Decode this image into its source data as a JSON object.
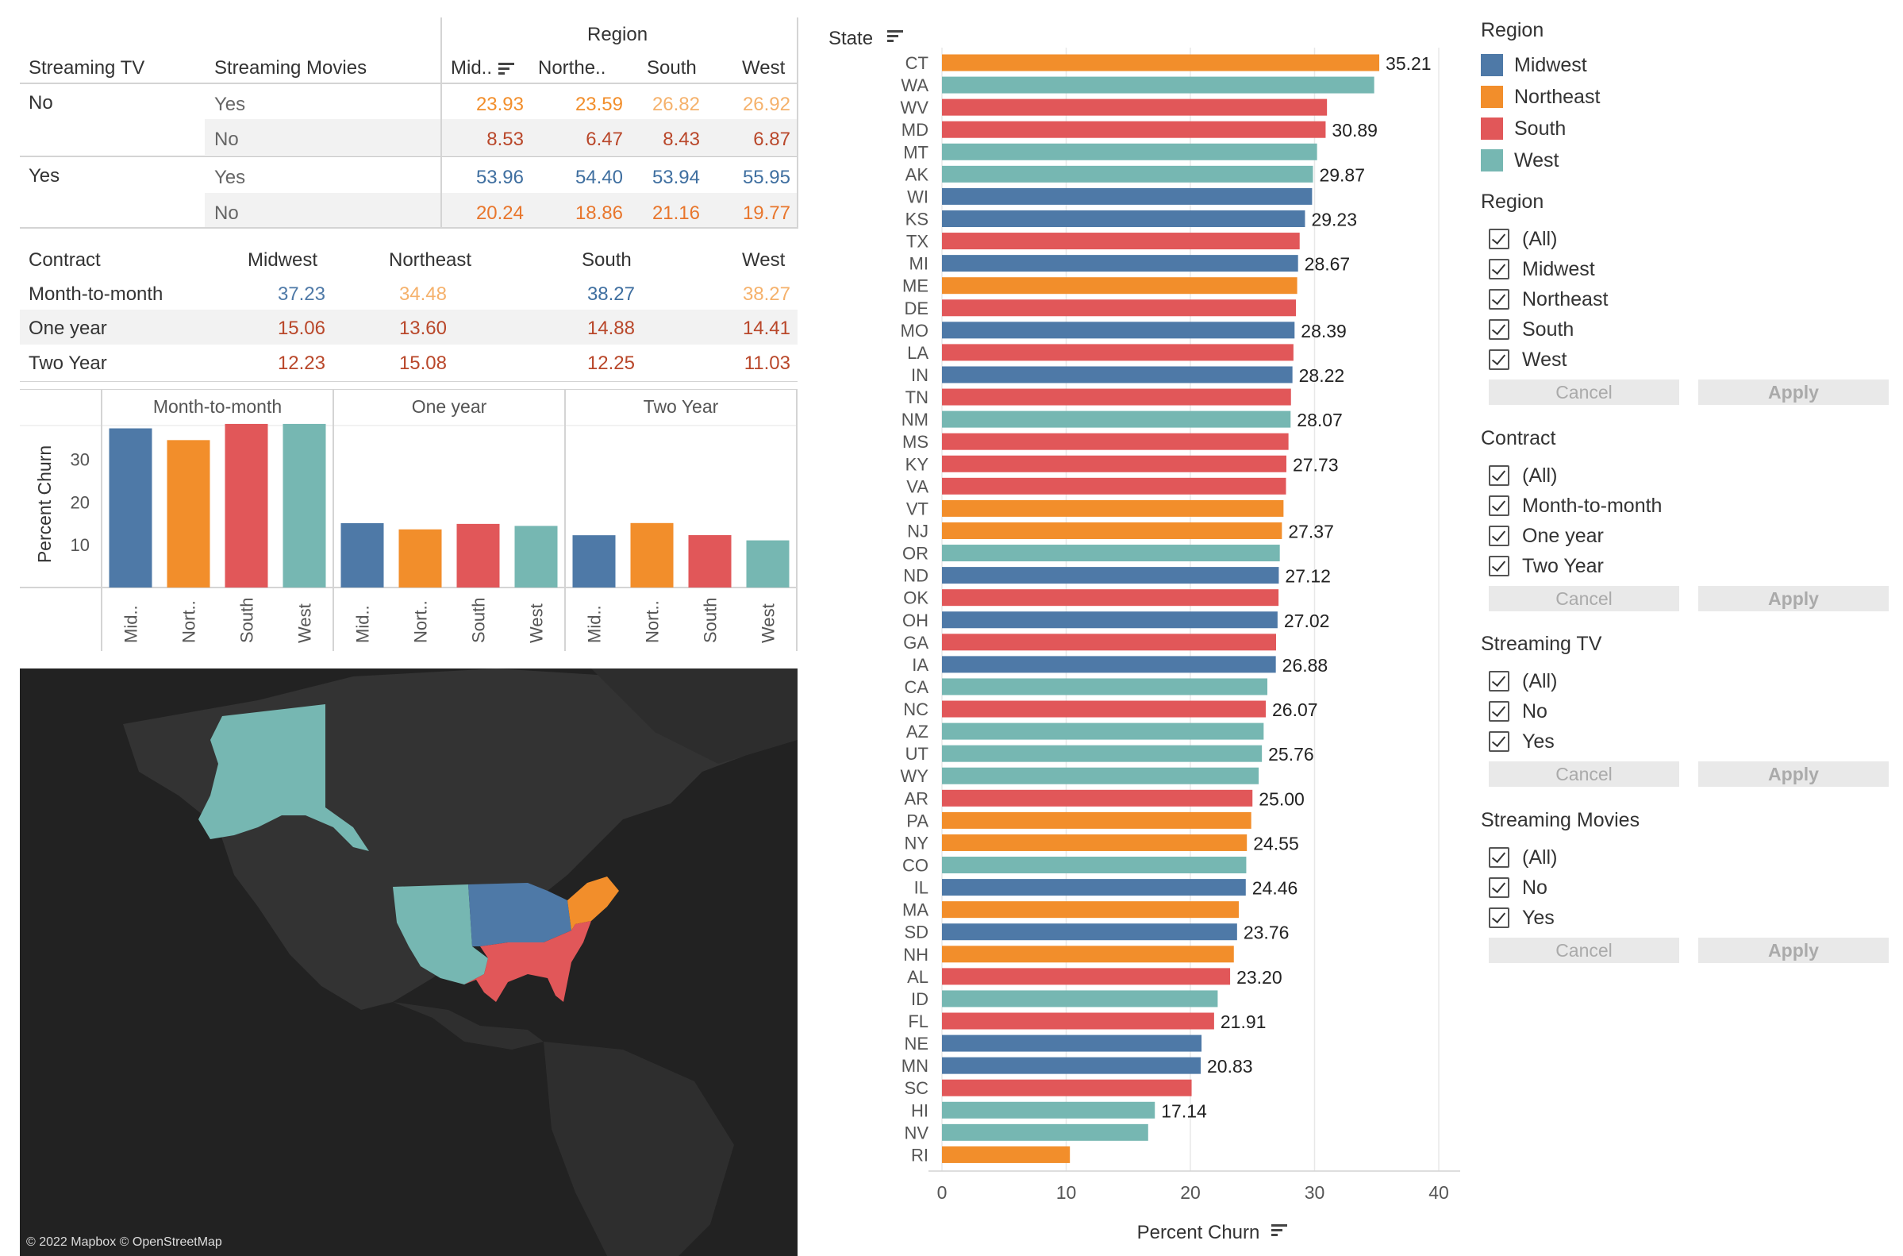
{
  "colors": {
    "Midwest": "#4e79a7",
    "Northeast": "#f28e2b",
    "South": "#e15759",
    "West": "#76b7b2"
  },
  "table1": {
    "region_header": "Region",
    "col_streaming_tv": "Streaming TV",
    "col_streaming_movies": "Streaming Movies",
    "regions": [
      "Mid..",
      "Northe..",
      "South",
      "West"
    ],
    "groups": [
      {
        "tv": "No",
        "rows": [
          {
            "movies": "Yes",
            "values": [
              "23.93",
              "23.59",
              "26.82",
              "26.92"
            ],
            "colors": [
              "#f28e2b",
              "#f28e2b",
              "#f5b16b",
              "#f5b16b"
            ]
          },
          {
            "movies": "No",
            "values": [
              "8.53",
              "6.47",
              "8.43",
              "6.87"
            ],
            "colors": [
              "#b9472a",
              "#b9472a",
              "#b9472a",
              "#b9472a"
            ]
          }
        ]
      },
      {
        "tv": "Yes",
        "rows": [
          {
            "movies": "Yes",
            "values": [
              "53.96",
              "54.40",
              "53.94",
              "55.95"
            ],
            "colors": [
              "#3f6fa0",
              "#3f6fa0",
              "#3f6fa0",
              "#3f6fa0"
            ]
          },
          {
            "movies": "No",
            "values": [
              "20.24",
              "18.86",
              "21.16",
              "19.77"
            ],
            "colors": [
              "#e8762c",
              "#e8762c",
              "#e8762c",
              "#e8762c"
            ]
          }
        ]
      }
    ]
  },
  "table2": {
    "col_contract": "Contract",
    "regions": [
      "Midwest",
      "Northeast",
      "South",
      "West"
    ],
    "rows": [
      {
        "label": "Month-to-month",
        "values": [
          "37.23",
          "34.48",
          "38.27",
          "38.27"
        ],
        "colors": [
          "#4e79a7",
          "#f5b16b",
          "#3f6fa0",
          "#f5b16b"
        ]
      },
      {
        "label": "One year",
        "values": [
          "15.06",
          "13.60",
          "14.88",
          "14.41"
        ],
        "colors": [
          "#b9472a",
          "#b9472a",
          "#b9472a",
          "#b9472a"
        ]
      },
      {
        "label": "Two Year",
        "values": [
          "12.23",
          "15.08",
          "12.25",
          "11.03"
        ],
        "colors": [
          "#b9472a",
          "#b9472a",
          "#b9472a",
          "#b9472a"
        ]
      }
    ]
  },
  "chart_data": [
    {
      "type": "bar",
      "panels": [
        "Month-to-month",
        "One year",
        "Two Year"
      ],
      "categories": [
        "Mid..",
        "Nort..",
        "South",
        "West"
      ],
      "ylabel": "Percent Churn",
      "yticks": [
        10,
        20,
        30
      ],
      "ylim": [
        0,
        39
      ],
      "series": [
        {
          "panel": "Month-to-month",
          "values": [
            37.23,
            34.48,
            38.27,
            38.27
          ]
        },
        {
          "panel": "One year",
          "values": [
            15.06,
            13.6,
            14.88,
            14.41
          ]
        },
        {
          "panel": "Two Year",
          "values": [
            12.23,
            15.08,
            12.25,
            11.03
          ]
        }
      ]
    },
    {
      "type": "bar",
      "orientation": "horizontal",
      "ylabel": "State",
      "xlabel": "Percent Churn",
      "xticks": [
        0,
        10,
        20,
        30,
        40
      ],
      "xlim": [
        0,
        41
      ],
      "states": [
        {
          "s": "CT",
          "v": 35.21,
          "r": "Northeast",
          "l": "35.21"
        },
        {
          "s": "WA",
          "v": 34.8,
          "r": "West",
          "l": ""
        },
        {
          "s": "WV",
          "v": 31.0,
          "r": "South",
          "l": ""
        },
        {
          "s": "MD",
          "v": 30.89,
          "r": "South",
          "l": "30.89"
        },
        {
          "s": "MT",
          "v": 30.2,
          "r": "West",
          "l": ""
        },
        {
          "s": "AK",
          "v": 29.87,
          "r": "West",
          "l": "29.87"
        },
        {
          "s": "WI",
          "v": 29.8,
          "r": "Midwest",
          "l": ""
        },
        {
          "s": "KS",
          "v": 29.23,
          "r": "Midwest",
          "l": "29.23"
        },
        {
          "s": "TX",
          "v": 28.8,
          "r": "South",
          "l": ""
        },
        {
          "s": "MI",
          "v": 28.67,
          "r": "Midwest",
          "l": "28.67"
        },
        {
          "s": "ME",
          "v": 28.6,
          "r": "Northeast",
          "l": ""
        },
        {
          "s": "DE",
          "v": 28.5,
          "r": "South",
          "l": ""
        },
        {
          "s": "MO",
          "v": 28.39,
          "r": "Midwest",
          "l": "28.39"
        },
        {
          "s": "LA",
          "v": 28.3,
          "r": "South",
          "l": ""
        },
        {
          "s": "IN",
          "v": 28.22,
          "r": "Midwest",
          "l": "28.22"
        },
        {
          "s": "TN",
          "v": 28.1,
          "r": "South",
          "l": ""
        },
        {
          "s": "NM",
          "v": 28.07,
          "r": "West",
          "l": "28.07"
        },
        {
          "s": "MS",
          "v": 27.9,
          "r": "South",
          "l": ""
        },
        {
          "s": "KY",
          "v": 27.73,
          "r": "South",
          "l": "27.73"
        },
        {
          "s": "VA",
          "v": 27.7,
          "r": "South",
          "l": ""
        },
        {
          "s": "VT",
          "v": 27.5,
          "r": "Northeast",
          "l": ""
        },
        {
          "s": "NJ",
          "v": 27.37,
          "r": "Northeast",
          "l": "27.37"
        },
        {
          "s": "OR",
          "v": 27.2,
          "r": "West",
          "l": ""
        },
        {
          "s": "ND",
          "v": 27.12,
          "r": "Midwest",
          "l": "27.12"
        },
        {
          "s": "OK",
          "v": 27.1,
          "r": "South",
          "l": ""
        },
        {
          "s": "OH",
          "v": 27.02,
          "r": "Midwest",
          "l": "27.02"
        },
        {
          "s": "GA",
          "v": 26.9,
          "r": "South",
          "l": ""
        },
        {
          "s": "IA",
          "v": 26.88,
          "r": "Midwest",
          "l": "26.88"
        },
        {
          "s": "CA",
          "v": 26.2,
          "r": "West",
          "l": ""
        },
        {
          "s": "NC",
          "v": 26.07,
          "r": "South",
          "l": "26.07"
        },
        {
          "s": "AZ",
          "v": 25.9,
          "r": "West",
          "l": ""
        },
        {
          "s": "UT",
          "v": 25.76,
          "r": "West",
          "l": "25.76"
        },
        {
          "s": "WY",
          "v": 25.5,
          "r": "West",
          "l": ""
        },
        {
          "s": "AR",
          "v": 25.0,
          "r": "South",
          "l": "25.00"
        },
        {
          "s": "PA",
          "v": 24.9,
          "r": "Northeast",
          "l": ""
        },
        {
          "s": "NY",
          "v": 24.55,
          "r": "Northeast",
          "l": "24.55"
        },
        {
          "s": "CO",
          "v": 24.5,
          "r": "West",
          "l": ""
        },
        {
          "s": "IL",
          "v": 24.46,
          "r": "Midwest",
          "l": "24.46"
        },
        {
          "s": "MA",
          "v": 23.9,
          "r": "Northeast",
          "l": ""
        },
        {
          "s": "SD",
          "v": 23.76,
          "r": "Midwest",
          "l": "23.76"
        },
        {
          "s": "NH",
          "v": 23.5,
          "r": "Northeast",
          "l": ""
        },
        {
          "s": "AL",
          "v": 23.2,
          "r": "South",
          "l": "23.20"
        },
        {
          "s": "ID",
          "v": 22.2,
          "r": "West",
          "l": ""
        },
        {
          "s": "FL",
          "v": 21.91,
          "r": "South",
          "l": "21.91"
        },
        {
          "s": "NE",
          "v": 20.9,
          "r": "Midwest",
          "l": ""
        },
        {
          "s": "MN",
          "v": 20.83,
          "r": "Midwest",
          "l": "20.83"
        },
        {
          "s": "SC",
          "v": 20.1,
          "r": "South",
          "l": ""
        },
        {
          "s": "HI",
          "v": 17.14,
          "r": "West",
          "l": "17.14"
        },
        {
          "s": "NV",
          "v": 16.6,
          "r": "West",
          "l": ""
        },
        {
          "s": "RI",
          "v": 10.3,
          "r": "Northeast",
          "l": ""
        }
      ]
    }
  ],
  "map": {
    "attribution": "© 2022 Mapbox © OpenStreetMap"
  },
  "legend": {
    "title": "Region",
    "items": [
      "Midwest",
      "Northeast",
      "South",
      "West"
    ]
  },
  "filters": [
    {
      "title": "Region",
      "items": [
        "(All)",
        "Midwest",
        "Northeast",
        "South",
        "West"
      ],
      "cancel": "Cancel",
      "apply": "Apply"
    },
    {
      "title": "Contract",
      "items": [
        "(All)",
        "Month-to-month",
        "One year",
        "Two Year"
      ],
      "cancel": "Cancel",
      "apply": "Apply"
    },
    {
      "title": "Streaming TV",
      "items": [
        "(All)",
        "No",
        "Yes"
      ],
      "cancel": "Cancel",
      "apply": "Apply"
    },
    {
      "title": "Streaming Movies",
      "items": [
        "(All)",
        "No",
        "Yes"
      ],
      "cancel": "Cancel",
      "apply": "Apply"
    }
  ]
}
